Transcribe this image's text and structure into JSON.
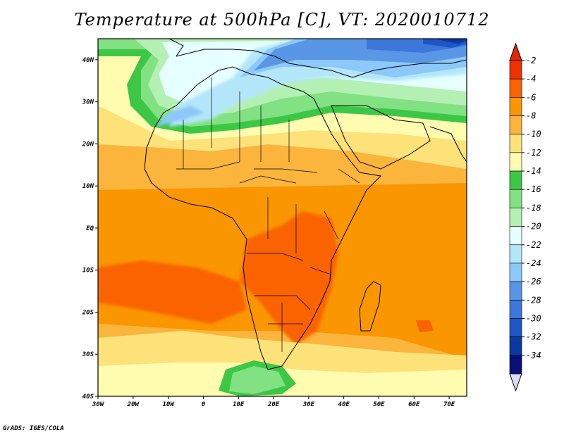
{
  "title": "Temperature at 500hPa [C], VT: 2020010712",
  "credit": "GrADS: IGES/COLA",
  "map": {
    "lon_range": [
      -30,
      75
    ],
    "lat_range": [
      -40,
      45
    ],
    "x_ticks": [
      "30W",
      "20W",
      "10W",
      "0",
      "10E",
      "20E",
      "30E",
      "40E",
      "50E",
      "60E",
      "70E"
    ],
    "y_ticks": [
      "40N",
      "30N",
      "20N",
      "10N",
      "EQ",
      "10S",
      "20S",
      "30S",
      "40S"
    ]
  },
  "colorbar": {
    "labels": [
      "-2",
      "-4",
      "-6",
      "-8",
      "-10",
      "-12",
      "-14",
      "-16",
      "-18",
      "-20",
      "-22",
      "-24",
      "-26",
      "-28",
      "-30",
      "-32",
      "-34"
    ],
    "colors": [
      "#f03000",
      "#fa6400",
      "#fa9600",
      "#fbb43c",
      "#fde27a",
      "#fffcb0",
      "#3cc846",
      "#82e182",
      "#b4f0b4",
      "#e6ffff",
      "#b4e6fa",
      "#8cc8fa",
      "#5a96e6",
      "#3c78dc",
      "#1e55c8",
      "#0a3aa0",
      "#08107a"
    ]
  }
}
